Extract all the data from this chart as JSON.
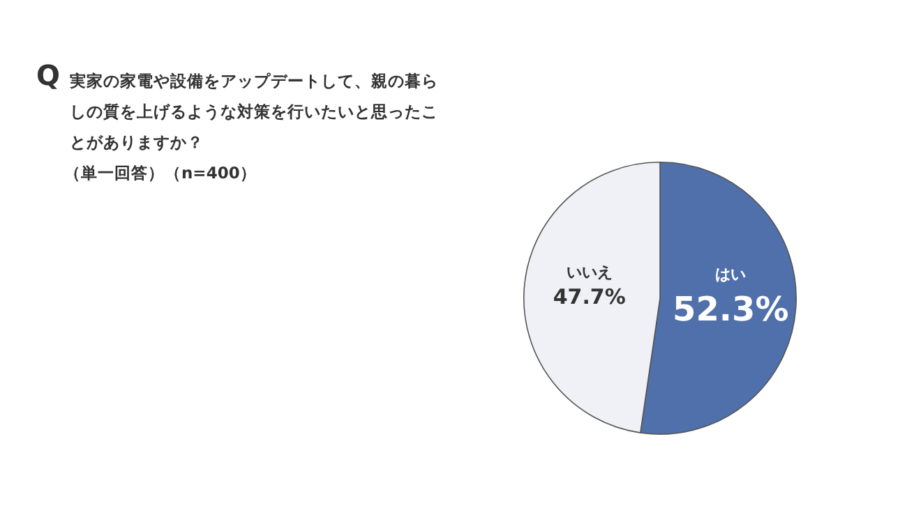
{
  "chart_data": {
    "type": "pie",
    "title": "実家の家電や設備をアップデートして、親の暮らしの質を上げるような対策を行いたいと思ったことがありますか？",
    "subtitle": "（単一回答）（n=400）",
    "annotations": [
      "Q"
    ],
    "categories": [
      "はい",
      "いいえ"
    ],
    "values": [
      52.3,
      47.7
    ],
    "colors": [
      "#4f70aa",
      "#eff1f7"
    ],
    "value_labels": [
      "52.3%",
      "47.7%"
    ],
    "legend": false
  }
}
